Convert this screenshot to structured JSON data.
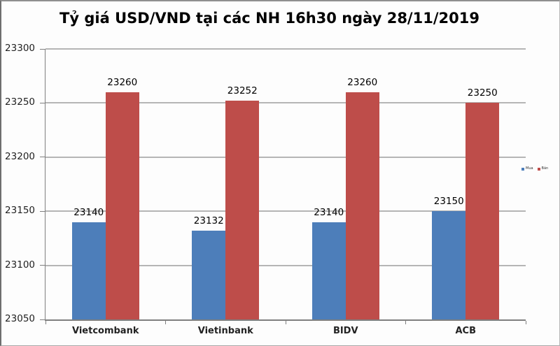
{
  "chart_data": {
    "type": "bar",
    "title": "Tỷ giá USD/VND tại các NH 16h30 ngày 28/11/2019",
    "categories": [
      "Vietcombank",
      "Vietinbank",
      "BIDV",
      "ACB"
    ],
    "series": [
      {
        "name": "Mua",
        "color": "#4d7eba",
        "values": [
          23140,
          23132,
          23140,
          23150
        ]
      },
      {
        "name": "Bán",
        "color": "#be4d4a",
        "values": [
          23260,
          23252,
          23260,
          23250
        ]
      }
    ],
    "ylim": [
      23050,
      23300
    ],
    "yticks": [
      23050,
      23100,
      23150,
      23200,
      23250,
      23300
    ],
    "grid": true,
    "data_labels": true,
    "legend_position": "right",
    "xlabel": "",
    "ylabel": ""
  },
  "colors": {
    "grid": "#b5b5b5",
    "axis": "#7f7f7f",
    "label_text": "#000000",
    "background": "#fdfdfd"
  }
}
